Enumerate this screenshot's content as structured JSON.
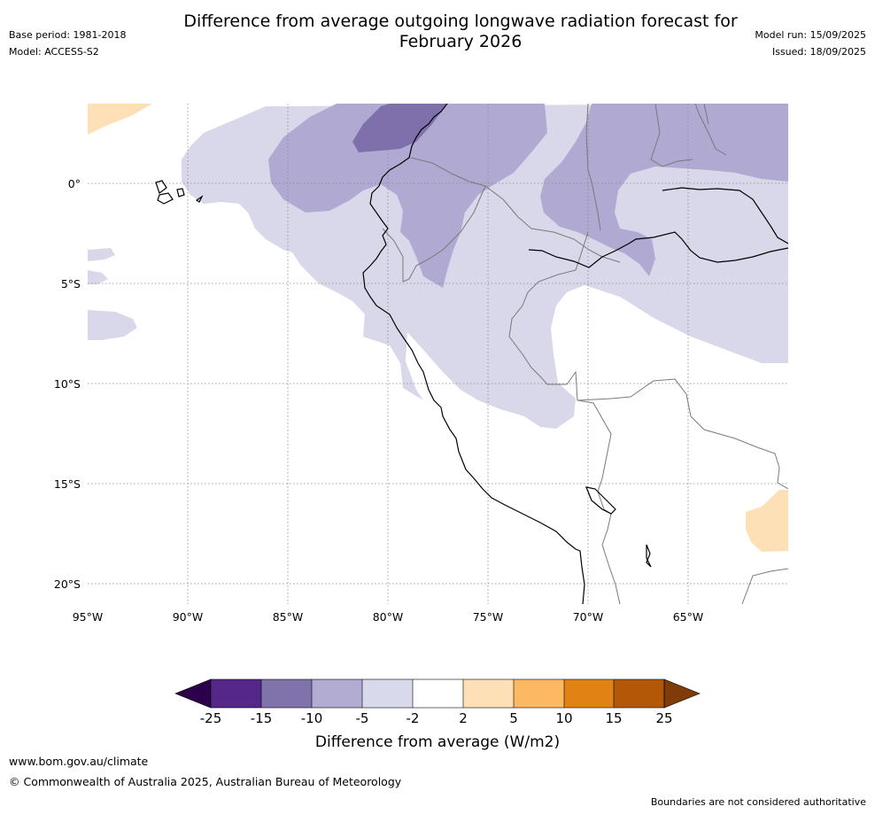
{
  "header": {
    "title_line1": "Difference from average outgoing longwave radiation forecast for",
    "title_line2": "February 2026",
    "base_period": "Base period: 1981-2018",
    "model": "Model: ACCESS-S2",
    "model_run": "Model run: 15/09/2025",
    "issued": "Issued: 18/09/2025"
  },
  "map": {
    "longitude_ticks": [
      "95°W",
      "90°W",
      "85°W",
      "80°W",
      "75°W",
      "70°W",
      "65°W"
    ],
    "latitude_ticks": [
      "0°",
      "5°S",
      "10°S",
      "15°S",
      "20°S"
    ],
    "gridlines": "dotted",
    "colors": {
      "coast": "#000000",
      "borders": "#7a7a7a",
      "lavender_light": "#d8d8ea",
      "lavender_mid": "#b0a9d2",
      "purple_dark": "#7f6fab",
      "peach": "#fee0b6"
    }
  },
  "colorbar": {
    "title": "Difference from average (W/m2)",
    "tick_labels": [
      "-25",
      "-15",
      "-10",
      "-5",
      "-2",
      "2",
      "5",
      "10",
      "15",
      "25"
    ],
    "colors": [
      "#2d004b",
      "#542788",
      "#8073ac",
      "#b2abd2",
      "#d8daeb",
      "#ffffff",
      "#fee0b6",
      "#fdb863",
      "#e08214",
      "#b35806",
      "#7f3b08"
    ]
  },
  "footer": {
    "website": "www.bom.gov.au/climate",
    "copyright": "© Commonwealth of Australia 2025, Australian Bureau of Meteorology",
    "disclaimer": "Boundaries are not considered authoritative"
  }
}
